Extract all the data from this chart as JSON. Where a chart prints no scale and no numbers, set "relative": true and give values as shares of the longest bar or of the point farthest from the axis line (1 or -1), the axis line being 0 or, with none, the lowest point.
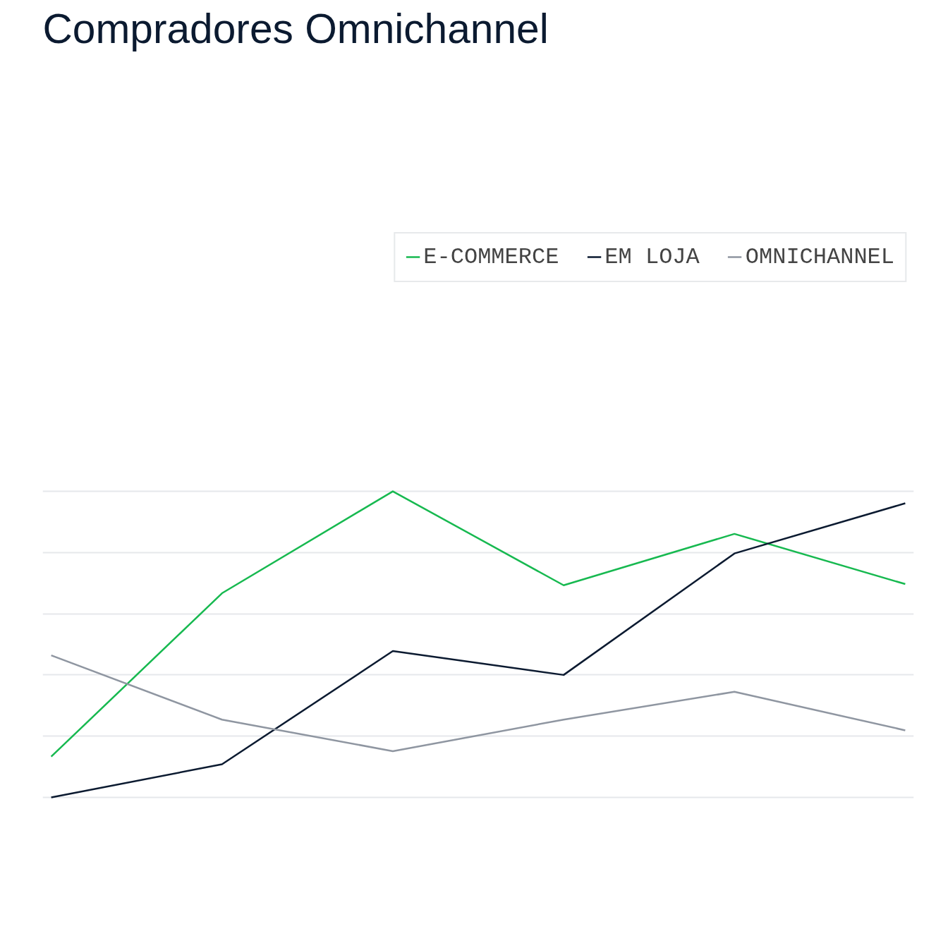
{
  "chart_data": {
    "type": "line",
    "title": "Compradores Omnichannel",
    "relative": true,
    "categories": [
      null,
      null,
      null,
      null,
      null,
      null
    ],
    "series": [
      {
        "name": "E-COMMERCE",
        "color": "#17b950",
        "values": [
          0.133,
          0.667,
          1.0,
          0.693,
          0.861,
          0.697
        ]
      },
      {
        "name": "EM LOJA",
        "color": "#0b1a30",
        "values": [
          0,
          0.108,
          0.478,
          0.4,
          0.797,
          0.961
        ]
      },
      {
        "name": "OMNICHANNEL",
        "color": "#8f96a1",
        "values": [
          0.464,
          0.254,
          0.151,
          0.254,
          0.345,
          0.219
        ]
      }
    ],
    "legend": "top",
    "grid": "y",
    "marker": "none",
    "line_style": "solid"
  }
}
